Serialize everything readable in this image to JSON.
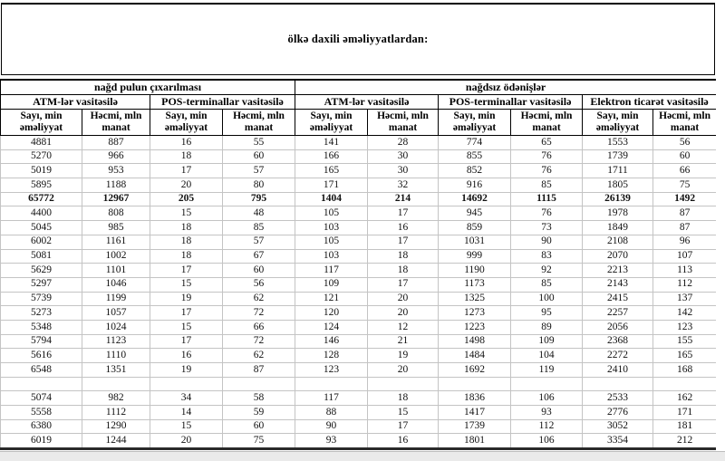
{
  "title": "ölkə daxili əməliyyatlardan:",
  "table": {
    "top_headers": {
      "cash_withdrawal": "nağd pulun çıxarılması",
      "cashless_payments": "nağdsız ödənişlər"
    },
    "group_headers": {
      "atm_cash": "ATM-lər vasitəsilə",
      "pos_cash": "POS-terminallar vasitəsilə",
      "atm_cashless": "ATM-lər vasitəsilə",
      "pos_cashless": "POS-terminallar vasitəsilə",
      "ecommerce": "Elektron ticarət vasitəsilə"
    },
    "sub_headers": {
      "count": "Sayı, min əməliyyat",
      "volume": "Həcmi, mln manat"
    },
    "bold_row_index": 4,
    "rows": [
      [
        "4881",
        "887",
        "16",
        "55",
        "141",
        "28",
        "774",
        "65",
        "1553",
        "56"
      ],
      [
        "5270",
        "966",
        "18",
        "60",
        "166",
        "30",
        "855",
        "76",
        "1739",
        "60"
      ],
      [
        "5019",
        "953",
        "17",
        "57",
        "165",
        "30",
        "852",
        "76",
        "1711",
        "66"
      ],
      [
        "5895",
        "1188",
        "20",
        "80",
        "171",
        "32",
        "916",
        "85",
        "1805",
        "75"
      ],
      [
        "65772",
        "12967",
        "205",
        "795",
        "1404",
        "214",
        "14692",
        "1115",
        "26139",
        "1492"
      ],
      [
        "4400",
        "808",
        "15",
        "48",
        "105",
        "17",
        "945",
        "76",
        "1978",
        "87"
      ],
      [
        "5045",
        "985",
        "18",
        "85",
        "103",
        "16",
        "859",
        "73",
        "1849",
        "87"
      ],
      [
        "6002",
        "1161",
        "18",
        "57",
        "105",
        "17",
        "1031",
        "90",
        "2108",
        "96"
      ],
      [
        "5081",
        "1002",
        "18",
        "67",
        "103",
        "18",
        "999",
        "83",
        "2070",
        "107"
      ],
      [
        "5629",
        "1101",
        "17",
        "60",
        "117",
        "18",
        "1190",
        "92",
        "2213",
        "113"
      ],
      [
        "5297",
        "1046",
        "15",
        "56",
        "109",
        "17",
        "1173",
        "85",
        "2143",
        "112"
      ],
      [
        "5739",
        "1199",
        "19",
        "62",
        "121",
        "20",
        "1325",
        "100",
        "2415",
        "137"
      ],
      [
        "5273",
        "1057",
        "17",
        "72",
        "120",
        "20",
        "1273",
        "95",
        "2257",
        "142"
      ],
      [
        "5348",
        "1024",
        "15",
        "66",
        "124",
        "12",
        "1223",
        "89",
        "2056",
        "123"
      ],
      [
        "5794",
        "1123",
        "17",
        "72",
        "146",
        "21",
        "1498",
        "109",
        "2368",
        "155"
      ],
      [
        "5616",
        "1110",
        "16",
        "62",
        "128",
        "19",
        "1484",
        "104",
        "2272",
        "165"
      ],
      [
        "6548",
        "1351",
        "19",
        "87",
        "123",
        "20",
        "1692",
        "119",
        "2410",
        "168"
      ],
      [
        "",
        "",
        "",
        "",
        "",
        "",
        "",
        "",
        "",
        ""
      ],
      [
        "5074",
        "982",
        "34",
        "58",
        "117",
        "18",
        "1836",
        "106",
        "2533",
        "162"
      ],
      [
        "5558",
        "1112",
        "14",
        "59",
        "88",
        "15",
        "1417",
        "93",
        "2776",
        "171"
      ],
      [
        "6380",
        "1290",
        "15",
        "60",
        "90",
        "17",
        "1739",
        "112",
        "3052",
        "181"
      ],
      [
        "6019",
        "1244",
        "20",
        "75",
        "93",
        "16",
        "1801",
        "106",
        "3354",
        "212"
      ]
    ]
  },
  "colors": {
    "grid_line": "#c4c4c4",
    "header_border": "#000000",
    "bottom_strip": "#eaeaea",
    "text": "#111111"
  }
}
